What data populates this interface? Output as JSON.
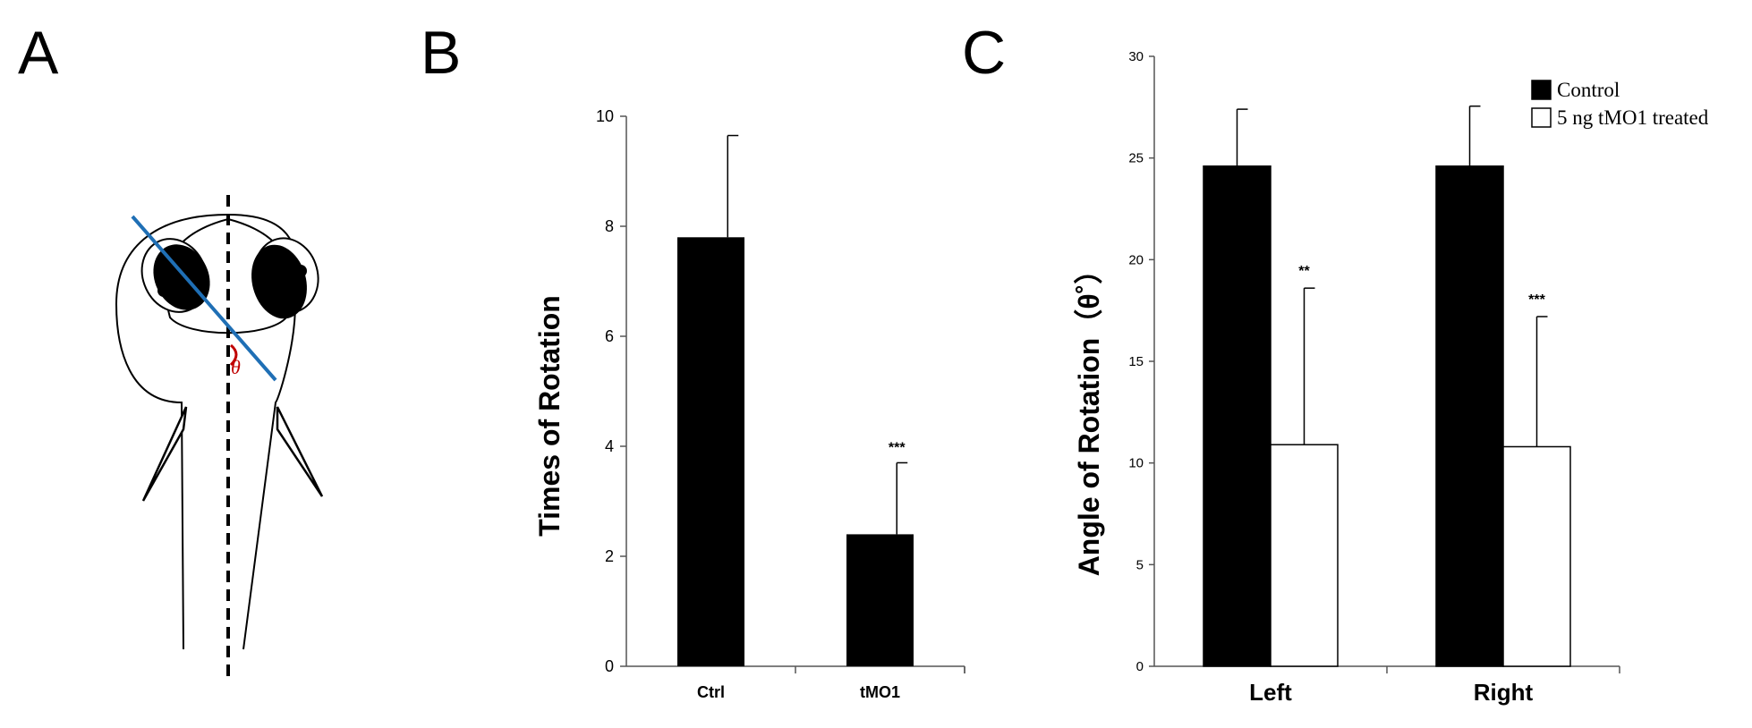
{
  "panel_labels": {
    "a": "A",
    "b": "B",
    "c": "C"
  },
  "diagram_a": {
    "angle_symbol": "θ",
    "line_color": "#1f6fb5",
    "angle_color": "#c00000"
  },
  "chart_data": [
    {
      "id": "B",
      "type": "bar",
      "ylabel": "Times of Rotation",
      "xlabel": "",
      "ylim": [
        0,
        10
      ],
      "yticks": [
        "0",
        "2",
        "4",
        "6",
        "8",
        "10"
      ],
      "categories": [
        "Ctrl",
        "tMO1"
      ],
      "values": [
        7.8,
        2.4
      ],
      "errors": [
        1.85,
        1.3
      ],
      "significance": [
        "",
        "***"
      ],
      "bar_color": "#000000"
    },
    {
      "id": "C",
      "type": "bar",
      "ylabel": "Angle of Rotation（θ˚）",
      "xlabel": "",
      "ylim": [
        0,
        30
      ],
      "yticks": [
        "0",
        "5",
        "10",
        "15",
        "20",
        "25",
        "30"
      ],
      "categories": [
        "Left",
        "Right"
      ],
      "series": [
        {
          "name": "Control",
          "values": [
            24.6,
            24.6
          ],
          "errors": [
            2.8,
            2.95
          ],
          "color": "#000000"
        },
        {
          "name": "5 ng tMO1 treated",
          "values": [
            10.9,
            10.8
          ],
          "errors": [
            7.7,
            6.4
          ],
          "color": "#ffffff"
        }
      ],
      "significance": [
        [
          "",
          "**"
        ],
        [
          "",
          "***"
        ]
      ],
      "legend": "top-right"
    }
  ]
}
